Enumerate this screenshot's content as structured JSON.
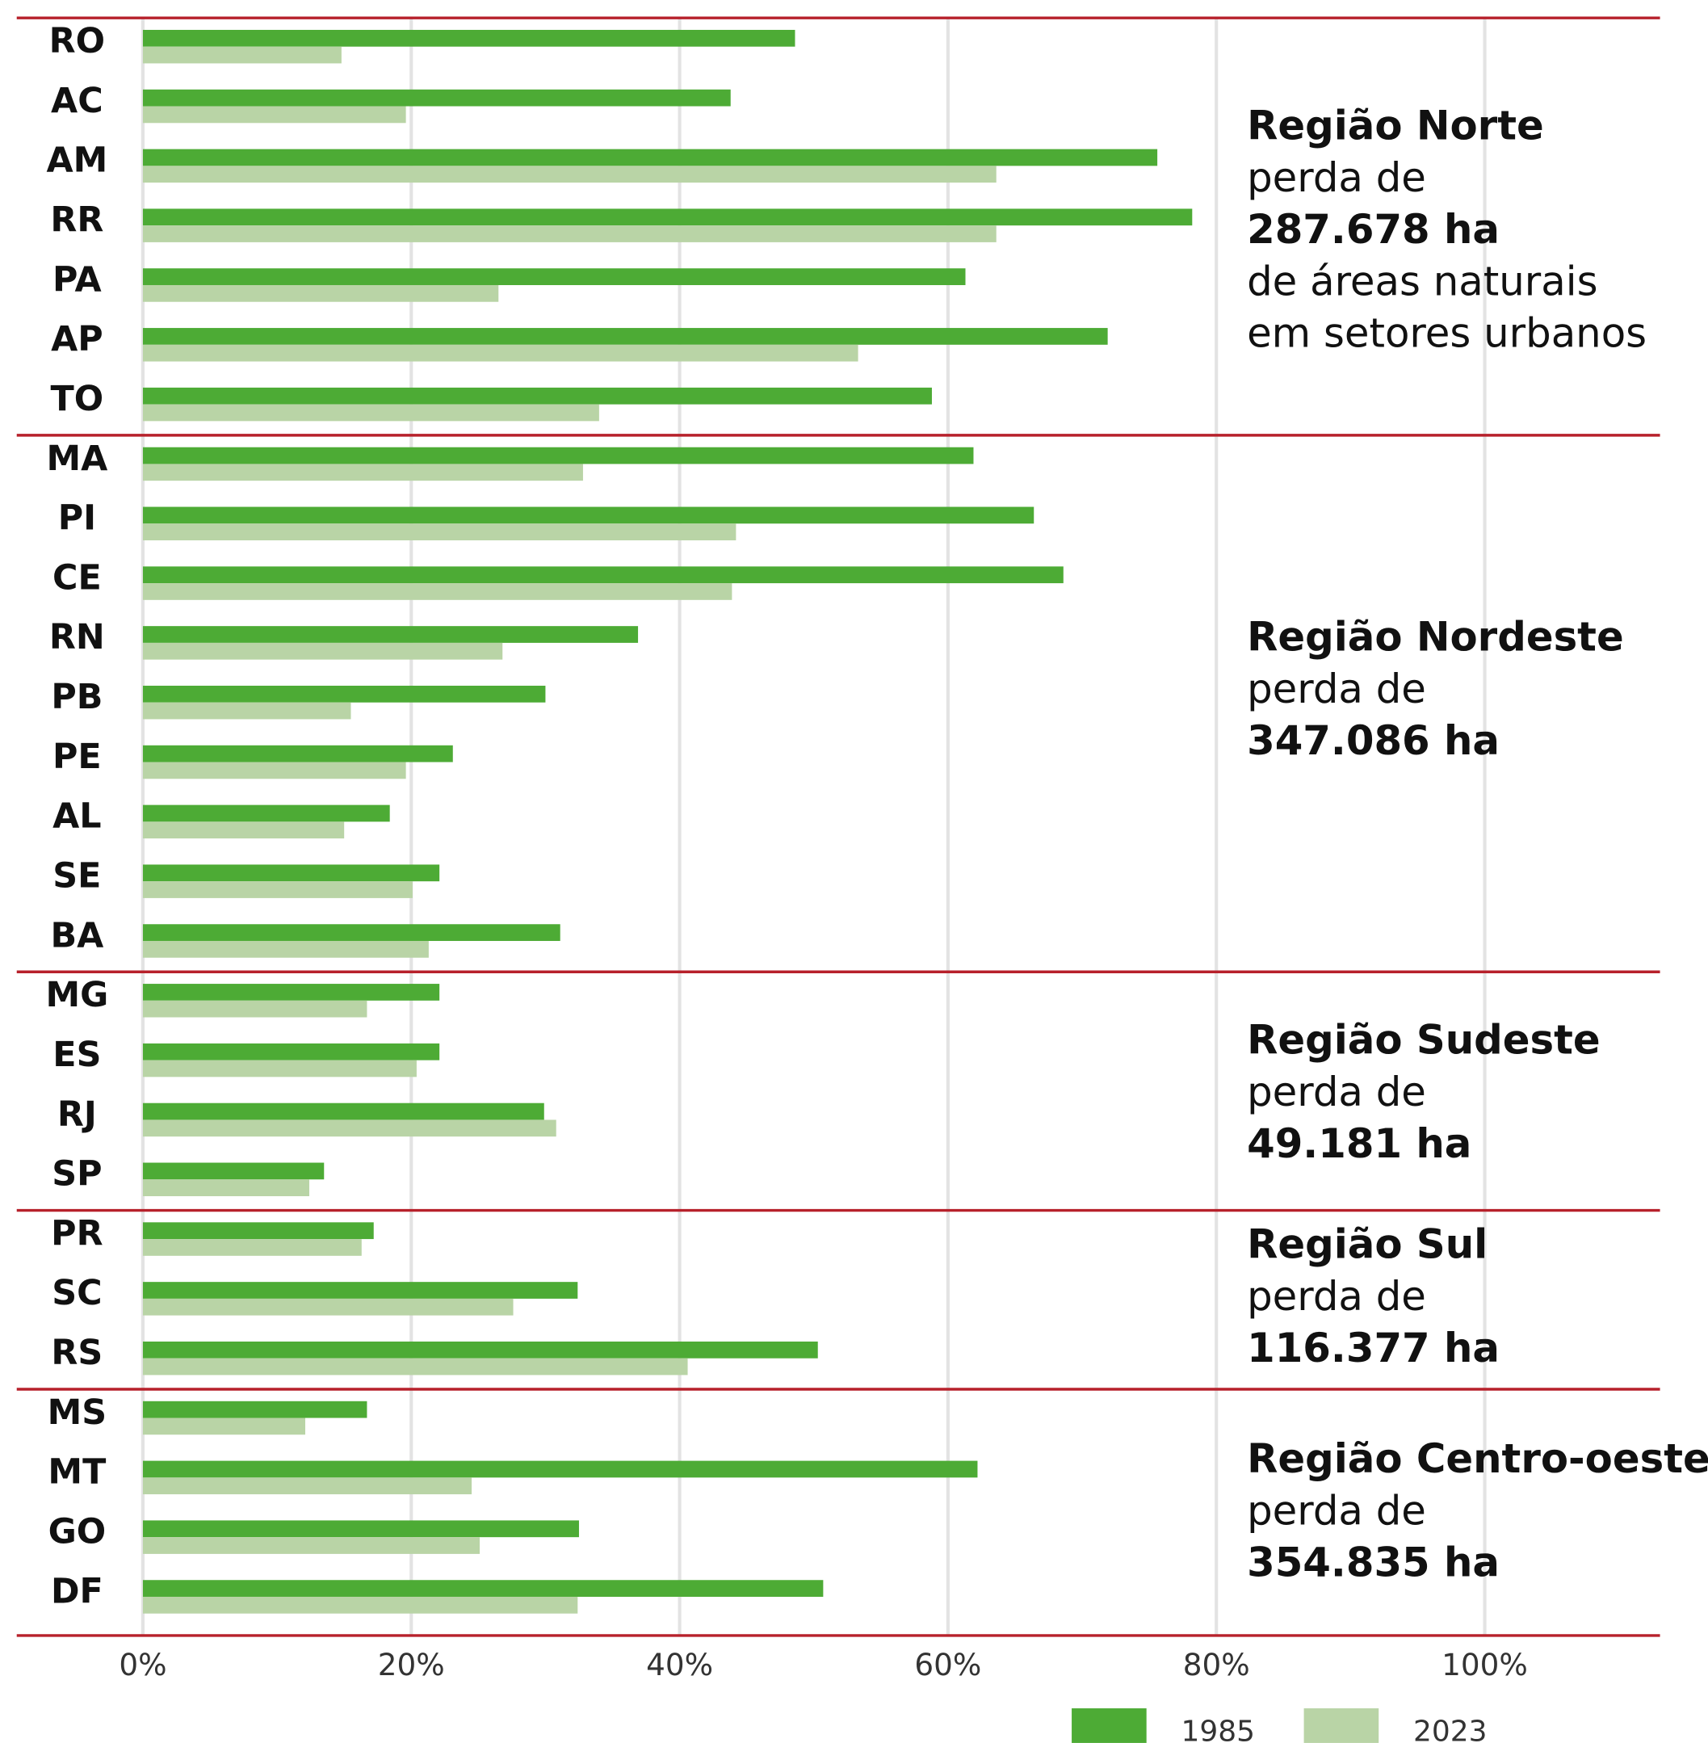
{
  "chart_data": {
    "type": "bar",
    "orientation": "horizontal",
    "categories": [
      "RO",
      "AC",
      "AM",
      "RR",
      "PA",
      "AP",
      "TO",
      "MA",
      "PI",
      "CE",
      "RN",
      "PB",
      "PE",
      "AL",
      "SE",
      "BA",
      "MG",
      "ES",
      "RJ",
      "SP",
      "PR",
      "SC",
      "RS",
      "MS",
      "MT",
      "GO",
      "DF"
    ],
    "series": [
      {
        "name": "1985",
        "color": "#4dab35",
        "values": [
          48.6,
          43.8,
          75.6,
          78.2,
          61.3,
          71.9,
          58.8,
          61.9,
          66.4,
          68.6,
          36.9,
          30.0,
          23.1,
          18.4,
          22.1,
          31.1,
          22.1,
          22.1,
          29.9,
          13.5,
          17.2,
          32.4,
          50.3,
          16.7,
          62.2,
          32.5,
          50.7
        ]
      },
      {
        "name": "2023",
        "color": "#b9d4a6",
        "values": [
          14.8,
          19.6,
          63.6,
          63.6,
          26.5,
          53.3,
          34.0,
          32.8,
          44.2,
          43.9,
          26.8,
          15.5,
          19.6,
          15.0,
          20.1,
          21.3,
          16.7,
          20.4,
          30.8,
          12.4,
          16.3,
          27.6,
          40.6,
          12.1,
          24.5,
          25.1,
          32.4
        ]
      }
    ],
    "xlim": [
      0,
      100
    ],
    "xticks": [
      {
        "value": 0,
        "label": "0%"
      },
      {
        "value": 20,
        "label": "20%"
      },
      {
        "value": 40,
        "label": "40%"
      },
      {
        "value": 60,
        "label": "60%"
      },
      {
        "value": 80,
        "label": "80%"
      },
      {
        "value": 100,
        "label": "100%"
      }
    ],
    "grid": true,
    "legend": "bottom-right",
    "regions": [
      {
        "name": "Região Norte",
        "lines": [
          "perda de",
          "287.678 ha",
          "de áreas naturais",
          "em setores urbanos"
        ]
      },
      {
        "name": "Região Nordeste",
        "lines": [
          "perda de",
          "347.086 ha"
        ]
      },
      {
        "name": "Região Sudeste",
        "lines": [
          "perda de",
          "49.181 ha"
        ]
      },
      {
        "name": "Região Sul",
        "lines": [
          "perda de",
          "116.377 ha"
        ]
      },
      {
        "name": "Região Centro-oeste",
        "lines": [
          "perda de",
          "354.835 ha"
        ]
      }
    ]
  }
}
